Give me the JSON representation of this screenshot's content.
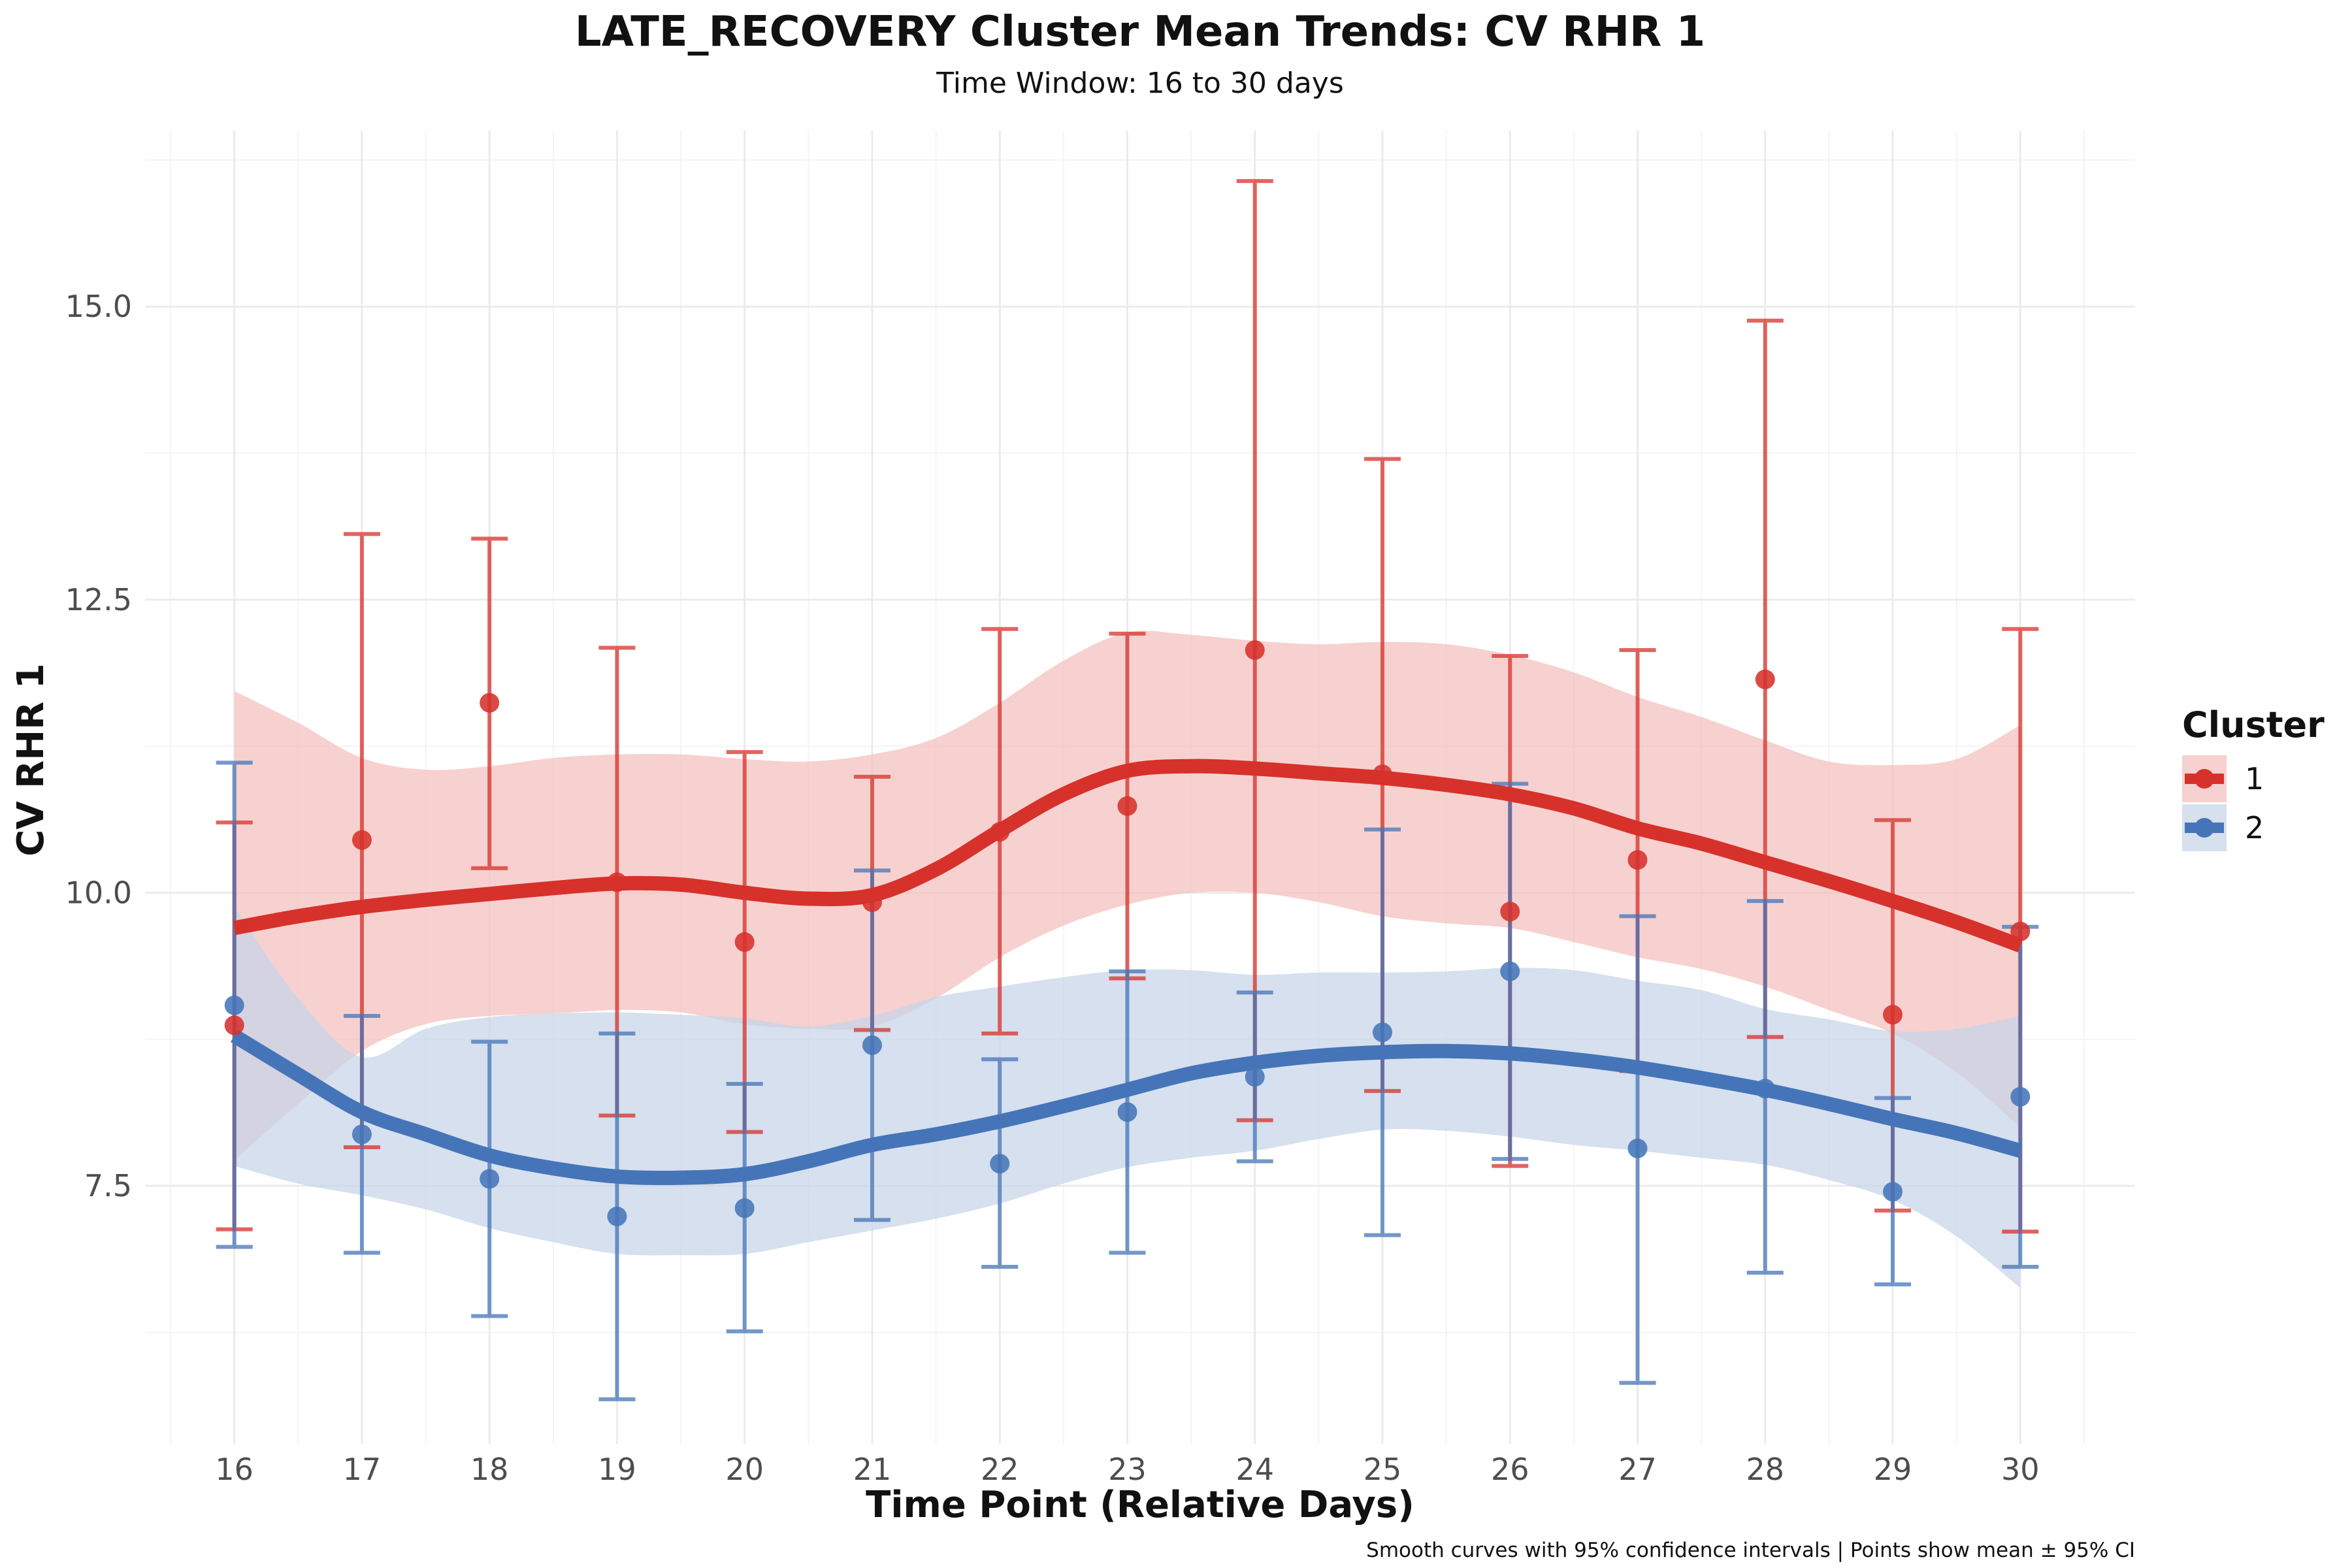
{
  "chart_data": {
    "type": "line",
    "title": "LATE_RECOVERY Cluster Mean Trends: CV RHR 1",
    "subtitle": "Time Window: 16 to 30 days",
    "xlabel": "Time Point (Relative Days)",
    "ylabel": "CV RHR 1",
    "caption": "Smooth curves with 95% confidence intervals | Points show mean ± 95% CI",
    "xlim": [
      15.3,
      30.9
    ],
    "ylim": [
      5.3,
      16.5
    ],
    "x_ticks": [
      16,
      17,
      18,
      19,
      20,
      21,
      22,
      23,
      24,
      25,
      26,
      27,
      28,
      29,
      30
    ],
    "x_tick_labels": [
      "16",
      "17",
      "18",
      "19",
      "20",
      "21",
      "22",
      "23",
      "24",
      "25",
      "26",
      "27",
      "28",
      "29",
      "30"
    ],
    "y_ticks": [
      7.5,
      10.0,
      12.5,
      15.0
    ],
    "y_tick_labels": [
      "7.5",
      "10.0",
      "12.5",
      "15.0"
    ],
    "y_minor_ticks": [
      6.25,
      8.75,
      11.25,
      13.75,
      16.25
    ],
    "grid": true,
    "legend": {
      "title": "Cluster",
      "position": "right"
    },
    "series": [
      {
        "name": "1",
        "color": "#d7312b",
        "band_color": "#f4bfbc",
        "x": [
          16,
          17,
          18,
          19,
          20,
          21,
          22,
          23,
          24,
          25,
          26,
          27,
          28,
          29,
          30
        ],
        "mean": [
          8.87,
          10.45,
          11.62,
          10.09,
          9.58,
          9.92,
          10.52,
          10.74,
          12.07,
          11.01,
          9.84,
          10.28,
          11.82,
          8.96,
          9.67
        ],
        "ci_low": [
          7.13,
          7.83,
          10.21,
          8.1,
          7.96,
          8.83,
          8.8,
          9.27,
          8.06,
          8.31,
          7.67,
          8.48,
          8.77,
          7.29,
          7.11
        ],
        "ci_high": [
          10.6,
          13.06,
          13.02,
          12.09,
          11.2,
          10.99,
          12.25,
          12.21,
          16.07,
          13.7,
          12.02,
          12.07,
          14.88,
          10.62,
          12.25
        ],
        "smooth_x": [
          16,
          16.5,
          17,
          17.5,
          18,
          18.5,
          19,
          19.5,
          20,
          20.5,
          21,
          21.5,
          22,
          22.5,
          23,
          23.5,
          24,
          24.5,
          25,
          25.5,
          26,
          26.5,
          27,
          27.5,
          28,
          28.5,
          29,
          29.5,
          30
        ],
        "smooth_y": [
          9.7,
          9.8,
          9.88,
          9.94,
          9.99,
          10.04,
          10.08,
          10.07,
          10.0,
          9.95,
          9.98,
          10.2,
          10.53,
          10.84,
          11.04,
          11.08,
          11.06,
          11.02,
          10.98,
          10.92,
          10.84,
          10.72,
          10.55,
          10.42,
          10.26,
          10.1,
          9.93,
          9.75,
          9.55
        ],
        "smooth_low": [
          7.72,
          8.2,
          8.65,
          8.88,
          8.95,
          8.97,
          9.0,
          8.98,
          8.88,
          8.84,
          8.86,
          9.1,
          9.45,
          9.72,
          9.9,
          10.0,
          10.0,
          9.92,
          9.8,
          9.74,
          9.7,
          9.58,
          9.45,
          9.35,
          9.2,
          9.0,
          8.8,
          8.47,
          8.0
        ],
        "smooth_high": [
          11.72,
          11.45,
          11.15,
          11.05,
          11.08,
          11.15,
          11.18,
          11.18,
          11.14,
          11.12,
          11.18,
          11.32,
          11.62,
          11.98,
          12.22,
          12.2,
          12.15,
          12.12,
          12.14,
          12.12,
          12.03,
          11.88,
          11.67,
          11.5,
          11.3,
          11.12,
          11.09,
          11.14,
          11.43
        ]
      },
      {
        "name": "2",
        "color": "#4575b8",
        "band_color": "#c6d4e8",
        "x": [
          16,
          17,
          18,
          19,
          20,
          21,
          22,
          23,
          24,
          25,
          26,
          27,
          28,
          29,
          30
        ],
        "mean": [
          9.04,
          7.94,
          7.56,
          7.24,
          7.31,
          8.7,
          7.69,
          8.13,
          8.43,
          8.81,
          9.33,
          7.82,
          8.33,
          7.45,
          8.26
        ],
        "ci_low": [
          6.98,
          6.93,
          6.39,
          5.68,
          6.26,
          7.21,
          6.81,
          6.93,
          7.71,
          7.08,
          7.73,
          5.82,
          6.76,
          6.66,
          6.81
        ],
        "ci_high": [
          11.11,
          8.95,
          8.73,
          8.8,
          8.37,
          10.19,
          8.58,
          9.33,
          9.15,
          10.54,
          10.93,
          9.8,
          9.93,
          8.25,
          9.71
        ],
        "smooth_x": [
          16,
          16.5,
          17,
          17.5,
          18,
          18.5,
          19,
          19.5,
          20,
          20.5,
          21,
          21.5,
          22,
          22.5,
          23,
          23.5,
          24,
          24.5,
          25,
          25.5,
          26,
          26.5,
          27,
          27.5,
          28,
          28.5,
          29,
          29.5,
          30
        ],
        "smooth_y": [
          8.78,
          8.45,
          8.13,
          7.94,
          7.76,
          7.65,
          7.58,
          7.57,
          7.6,
          7.71,
          7.85,
          7.94,
          8.05,
          8.18,
          8.32,
          8.46,
          8.55,
          8.61,
          8.64,
          8.65,
          8.63,
          8.58,
          8.51,
          8.42,
          8.32,
          8.2,
          8.07,
          7.95,
          7.8
        ],
        "smooth_low": [
          7.67,
          7.52,
          7.42,
          7.3,
          7.14,
          7.02,
          6.92,
          6.91,
          6.92,
          7.02,
          7.12,
          7.22,
          7.35,
          7.52,
          7.66,
          7.74,
          7.8,
          7.9,
          7.98,
          7.97,
          7.92,
          7.85,
          7.8,
          7.74,
          7.68,
          7.55,
          7.38,
          7.07,
          6.63
        ],
        "smooth_high": [
          9.88,
          9.1,
          8.6,
          8.84,
          8.94,
          8.97,
          8.98,
          8.96,
          8.93,
          8.86,
          8.95,
          9.11,
          9.2,
          9.28,
          9.34,
          9.34,
          9.3,
          9.32,
          9.32,
          9.33,
          9.36,
          9.34,
          9.25,
          9.17,
          9.01,
          8.92,
          8.82,
          8.84,
          8.95
        ]
      }
    ]
  }
}
